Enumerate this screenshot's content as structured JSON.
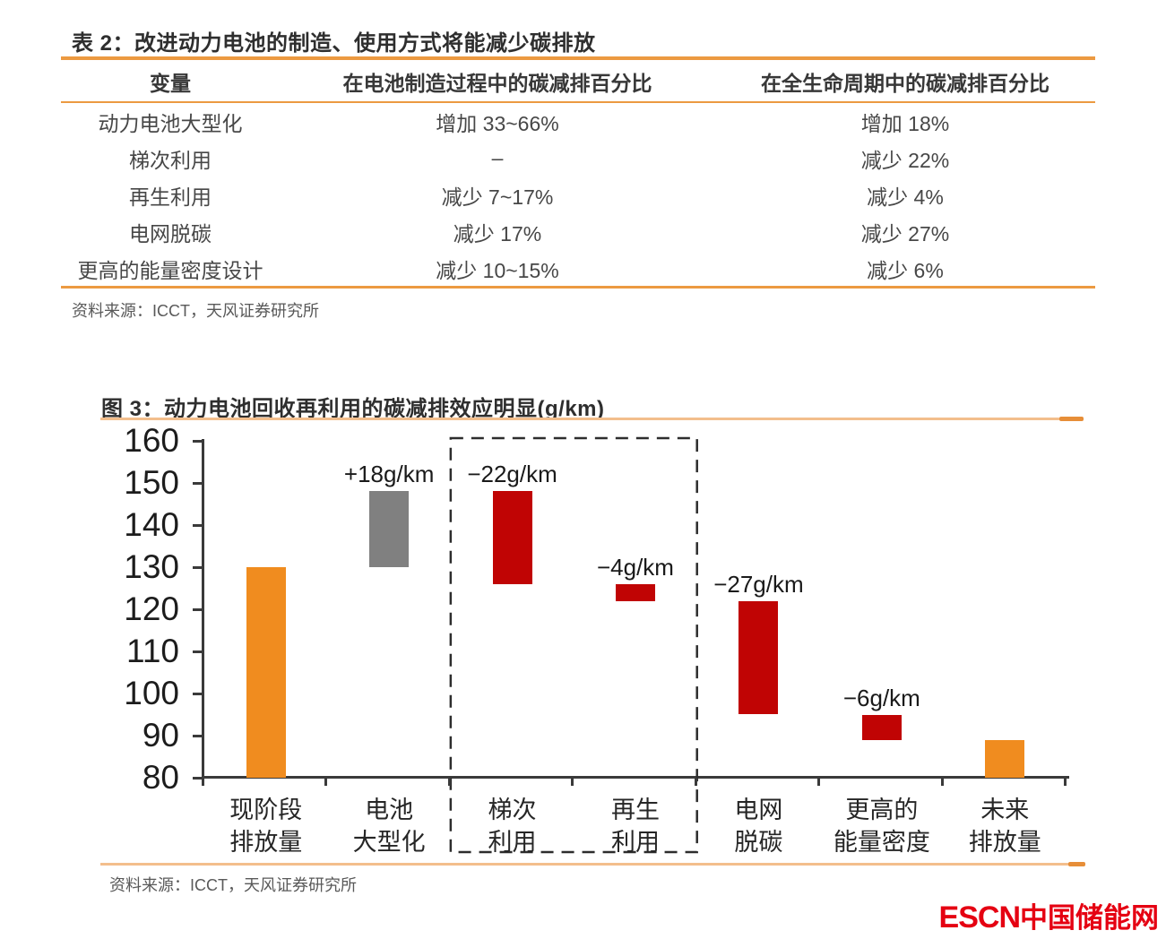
{
  "table": {
    "title": "表 2：改进动力电池的制造、使用方式将能减少碳排放",
    "columns": [
      "变量",
      "在电池制造过程中的碳减排百分比",
      "在全生命周期中的碳减排百分比"
    ],
    "rows": [
      [
        "动力电池大型化",
        "增加 33~66%",
        "增加 18%"
      ],
      [
        "梯次利用",
        "–",
        "减少 22%"
      ],
      [
        "再生利用",
        "减少 7~17%",
        "减少 4%"
      ],
      [
        "电网脱碳",
        "减少 17%",
        "减少 27%"
      ],
      [
        "更高的能量密度设计",
        "减少 10~15%",
        "减少 6%"
      ]
    ],
    "source": "资料来源：ICCT，天风证券研究所"
  },
  "figure": {
    "title": "图 3：动力电池回收再利用的碳减排效应明显(g/km)",
    "source": "资料来源：ICCT，天风证券研究所"
  },
  "chart_data": {
    "type": "bar",
    "subtype": "waterfall",
    "title": "图 3：动力电池回收再利用的碳减排效应明显(g/km)",
    "unit": "g/km",
    "ylim": [
      80,
      160
    ],
    "yticks": [
      80,
      90,
      100,
      110,
      120,
      130,
      140,
      150,
      160
    ],
    "grid": false,
    "categories": [
      "现阶段排放量",
      "电池大型化",
      "梯次利用",
      "再生利用",
      "电网脱碳",
      "更高的能量密度",
      "未来排放量"
    ],
    "category_label_lines": [
      [
        "现阶段",
        "排放量"
      ],
      [
        "电池",
        "大型化"
      ],
      [
        "梯次",
        "利用"
      ],
      [
        "再生",
        "利用"
      ],
      [
        "电网",
        "脱碳"
      ],
      [
        "更高的",
        "能量密度"
      ],
      [
        "未来",
        "排放量"
      ]
    ],
    "bars": [
      {
        "category": "现阶段排放量",
        "start": 80,
        "end": 130,
        "value": 130,
        "delta": 0,
        "label": "",
        "color": "#F08C1F",
        "role": "total"
      },
      {
        "category": "电池大型化",
        "start": 130,
        "end": 148,
        "delta": 18,
        "label": "+18g/km",
        "color": "#808080",
        "role": "increase"
      },
      {
        "category": "梯次利用",
        "start": 126,
        "end": 148,
        "delta": -22,
        "label": "−22g/km",
        "color": "#C00404",
        "role": "decrease"
      },
      {
        "category": "再生利用",
        "start": 122,
        "end": 126,
        "delta": -4,
        "label": "−4g/km",
        "color": "#C00404",
        "role": "decrease"
      },
      {
        "category": "电网脱碳",
        "start": 95,
        "end": 122,
        "delta": -27,
        "label": "−27g/km",
        "color": "#C00404",
        "role": "decrease"
      },
      {
        "category": "更高的能量密度",
        "start": 89,
        "end": 95,
        "delta": -6,
        "label": "−6g/km",
        "color": "#C00404",
        "role": "decrease"
      },
      {
        "category": "未来排放量",
        "start": 80,
        "end": 89,
        "value": 89,
        "delta": 0,
        "label": "",
        "color": "#F08C1F",
        "role": "total"
      }
    ],
    "highlight_box": {
      "category_indexes": [
        2,
        3
      ],
      "style": "dashed"
    }
  },
  "footer": {
    "logo_en": "ESCN",
    "logo_cn": "中国储能网"
  },
  "colors": {
    "accent_rule": "#EC9A41",
    "underline_light": "#F3BE8C",
    "underline_dark": "#E78E38",
    "bar_orange": "#F08C1F",
    "bar_gray": "#808080",
    "bar_red": "#C00404",
    "axis": "#3a3a3a",
    "logo_red": "#E50112"
  }
}
